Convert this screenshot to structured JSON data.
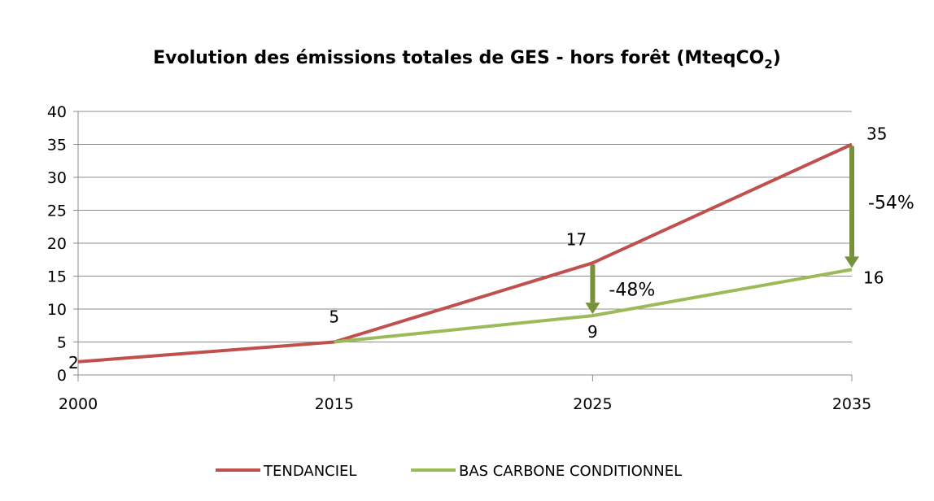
{
  "chart_data": {
    "type": "line",
    "title": "Evolution des émissions totales de GES - hors forêt (MteqCO",
    "title_subscript": "2",
    "title_end": ")",
    "x": [
      2000,
      2015,
      2025,
      2035
    ],
    "x_tick_labels": [
      "2000",
      "2015",
      "2025",
      "2035"
    ],
    "ylim": [
      0,
      40
    ],
    "y_ticks": [
      0,
      5,
      10,
      15,
      20,
      25,
      30,
      35,
      40
    ],
    "grid": true,
    "legend_position": "bottom",
    "series": [
      {
        "name": "TENDANCIEL",
        "color": "#c0504d",
        "x": [
          2000,
          2015,
          2025,
          2035
        ],
        "values": [
          2,
          5,
          17,
          35
        ],
        "labels": [
          {
            "x": 2000,
            "text": "2"
          },
          {
            "x": 2015,
            "text": "5"
          },
          {
            "x": 2025,
            "text": "17"
          },
          {
            "x": 2035,
            "text": "35"
          }
        ]
      },
      {
        "name": "BAS CARBONE CONDITIONNEL",
        "color": "#9bbb59",
        "x": [
          2015,
          2025,
          2035
        ],
        "values": [
          5,
          9,
          16
        ],
        "labels": [
          {
            "x": 2025,
            "text": "9"
          },
          {
            "x": 2035,
            "text": "16"
          }
        ]
      }
    ],
    "annotations": [
      {
        "x": 2025,
        "from": 17,
        "to": 9,
        "text": "-48%",
        "color": "#76923c"
      },
      {
        "x": 2035,
        "from": 35,
        "to": 16,
        "text": "-54%",
        "color": "#76923c"
      }
    ]
  }
}
